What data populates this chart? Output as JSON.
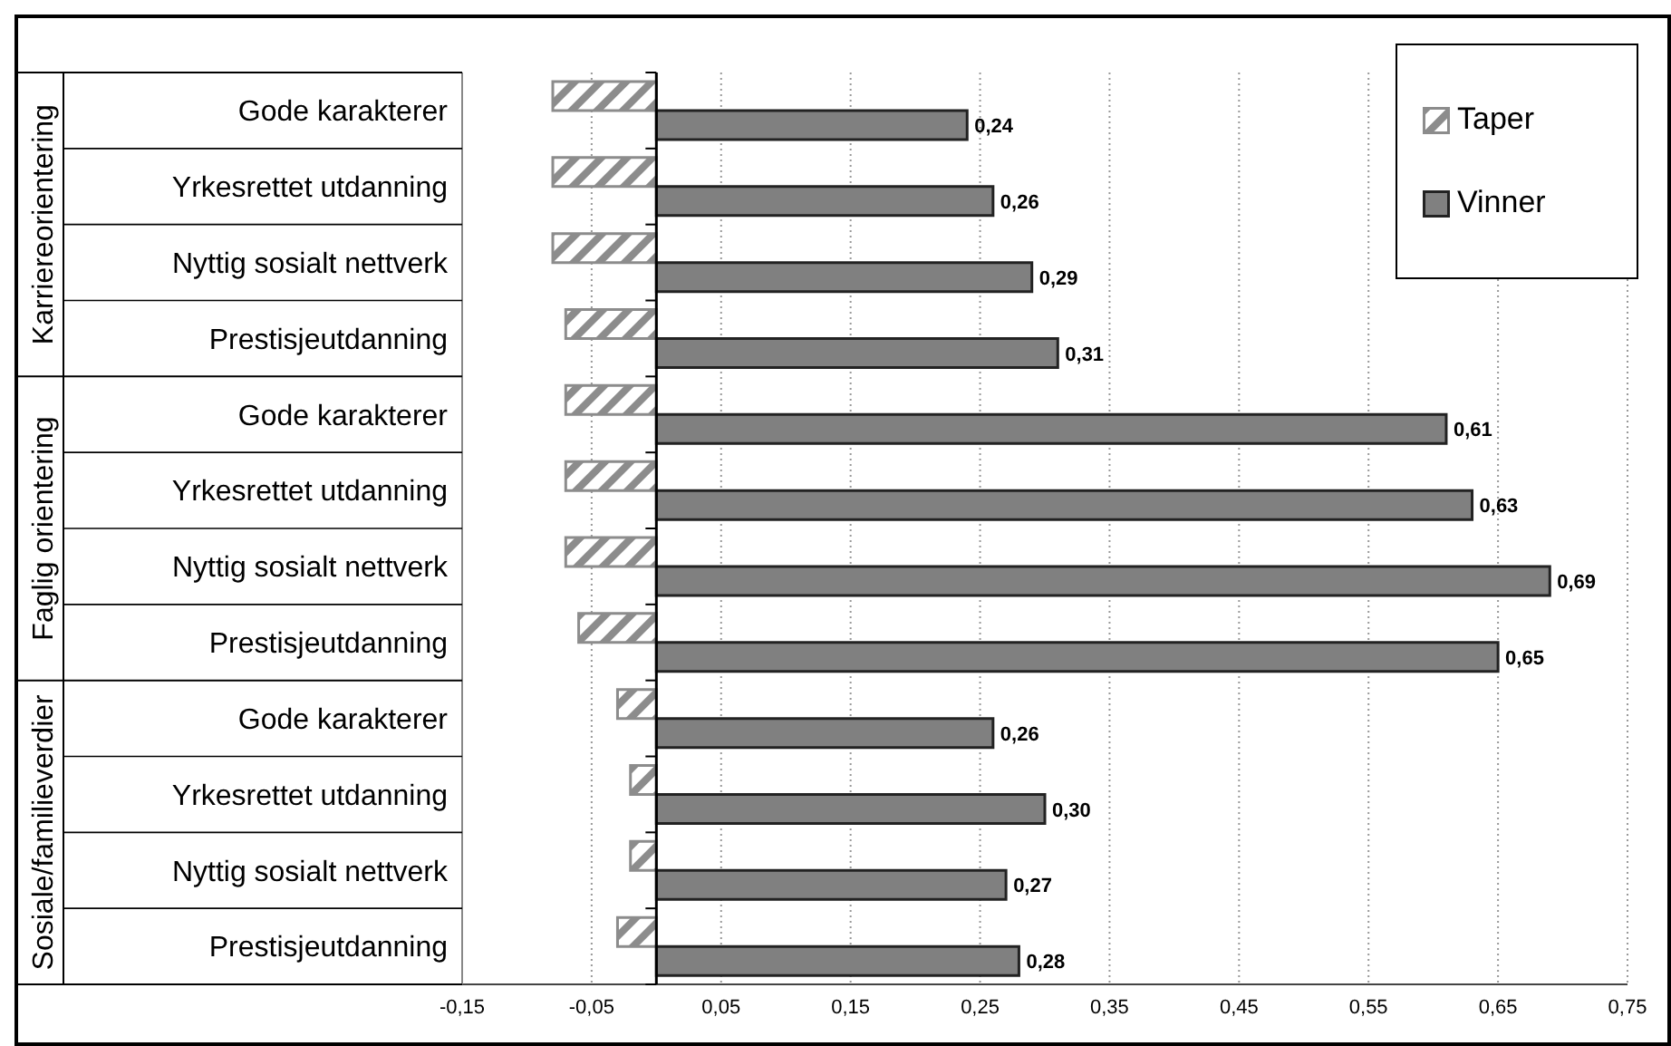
{
  "chart_data": {
    "type": "bar",
    "orientation": "horizontal",
    "categories": [
      "Gode karakterer",
      "Yrkesrettet utdanning",
      "Nyttig sosialt nettverk",
      "Prestisjeutdanning",
      "Gode karakterer",
      "Yrkesrettet utdanning",
      "Nyttig sosialt nettverk",
      "Prestisjeutdanning",
      "Gode karakterer",
      "Yrkesrettet utdanning",
      "Nyttig sosialt nettverk",
      "Prestisjeutdanning"
    ],
    "series": [
      {
        "name": "Taper",
        "color": "#8c8c8c",
        "values": [
          -0.08,
          -0.08,
          -0.08,
          -0.07,
          -0.07,
          -0.07,
          -0.07,
          -0.06,
          -0.03,
          -0.02,
          -0.02,
          -0.03
        ]
      },
      {
        "name": "Vinner",
        "color": "#808080",
        "values": [
          0.24,
          0.26,
          0.29,
          0.31,
          0.61,
          0.63,
          0.69,
          0.65,
          0.26,
          0.3,
          0.27,
          0.28
        ],
        "value_labels": [
          "0,24",
          "0,26",
          "0,29",
          "0,31",
          "0,61",
          "0,63",
          "0,69",
          "0,65",
          "0,26",
          "0,30",
          "0,27",
          "0,28"
        ]
      }
    ],
    "annotations": [
      "Karriereorientering",
      "Faglig orientering",
      "Sosiale/familieverdier"
    ],
    "xlim": [
      -0.15,
      0.75
    ],
    "xticks": [
      {
        "value": -0.15,
        "label": "-0,15"
      },
      {
        "value": -0.05,
        "label": "-0,05"
      },
      {
        "value": 0.05,
        "label": "0,05"
      },
      {
        "value": 0.15,
        "label": "0,15"
      },
      {
        "value": 0.25,
        "label": "0,25"
      },
      {
        "value": 0.35,
        "label": "0,35"
      },
      {
        "value": 0.45,
        "label": "0,45"
      },
      {
        "value": 0.55,
        "label": "0,55"
      },
      {
        "value": 0.65,
        "label": "0,65"
      },
      {
        "value": 0.75,
        "label": "0,75"
      }
    ],
    "grid": "x",
    "legend": "top right"
  }
}
